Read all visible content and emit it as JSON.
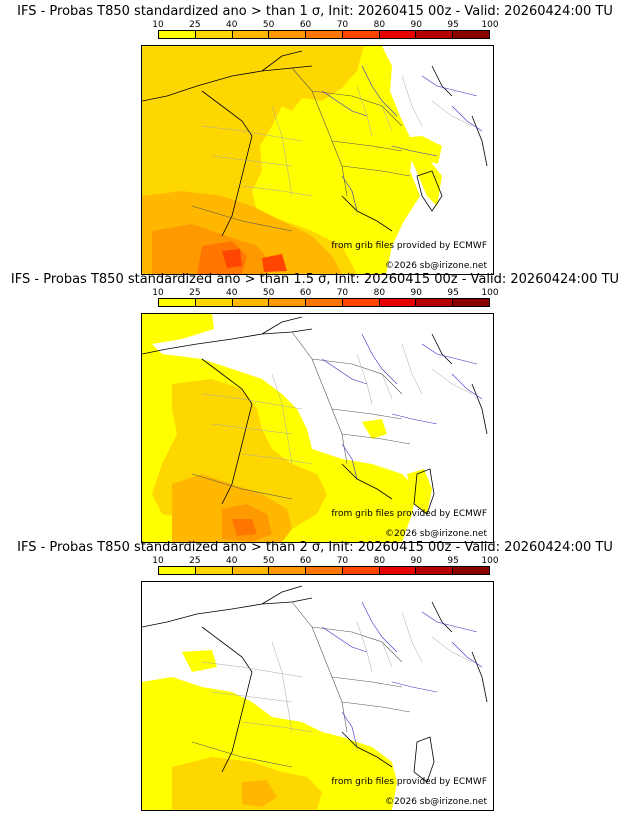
{
  "panels": [
    {
      "title": "IFS - Probas T850  standardized ano > than 1 σ, Init: 20260415 00z - Valid: 20260424:00 TU",
      "threshold": "1 σ"
    },
    {
      "title": "IFS - Probas T850  standardized ano > than 1.5 σ, Init: 20260415 00z - Valid: 20260424:00 TU",
      "threshold": "1.5 σ"
    },
    {
      "title": "IFS - Probas T850  standardized ano > than 2 σ, Init: 20260415 00z - Valid: 20260424:00 TU",
      "threshold": "2 σ"
    }
  ],
  "colorbar": {
    "ticks": [
      "10",
      "25",
      "40",
      "50",
      "60",
      "70",
      "80",
      "90",
      "95",
      "100"
    ],
    "colors": [
      "#ffff00",
      "#ffd700",
      "#ffb700",
      "#ff9900",
      "#ff7700",
      "#ff4500",
      "#e60000",
      "#b40000",
      "#8a0000"
    ]
  },
  "credits": {
    "source": "from grib files provided by ECMWF",
    "copyright": "©2026 sb@irizone.net"
  }
}
